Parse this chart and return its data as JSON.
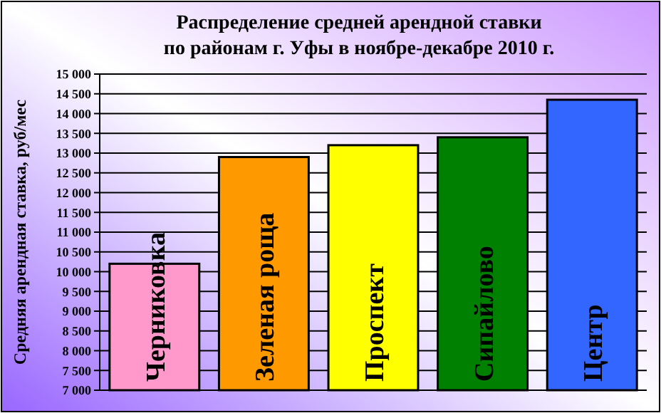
{
  "chart_data": {
    "type": "bar",
    "title": "Распределение средней арендной ставки\nпо районам г. Уфы в ноябре-декабре 2010 г.",
    "ylabel": "Средняя арендная ставка, руб/мес",
    "categories": [
      "Черниковка",
      "Зеленая роща",
      "Проспект",
      "Сипайлово",
      "Центр"
    ],
    "values": [
      10200,
      12900,
      13200,
      13400,
      14350
    ],
    "colors": [
      "#ff99cc",
      "#ff9900",
      "#ffff00",
      "#008000",
      "#3366ff"
    ],
    "ylim": [
      7000,
      15000
    ],
    "yticks": [
      {
        "value": 7000,
        "label": "7 000"
      },
      {
        "value": 7500,
        "label": "7 500"
      },
      {
        "value": 8000,
        "label": "8 000"
      },
      {
        "value": 8500,
        "label": "8 500"
      },
      {
        "value": 9000,
        "label": "9 000"
      },
      {
        "value": 9500,
        "label": "9 500"
      },
      {
        "value": 10000,
        "label": "10 000"
      },
      {
        "value": 10500,
        "label": "10 500"
      },
      {
        "value": 11000,
        "label": "11 000"
      },
      {
        "value": 11500,
        "label": "11 500"
      },
      {
        "value": 12000,
        "label": "12 000"
      },
      {
        "value": 12500,
        "label": "12 500"
      },
      {
        "value": 13000,
        "label": "13 000"
      },
      {
        "value": 13500,
        "label": "13 500"
      },
      {
        "value": 14000,
        "label": "14 000"
      },
      {
        "value": 14500,
        "label": "14 500"
      },
      {
        "value": 15000,
        "label": "15 000"
      }
    ],
    "grid": "y"
  }
}
